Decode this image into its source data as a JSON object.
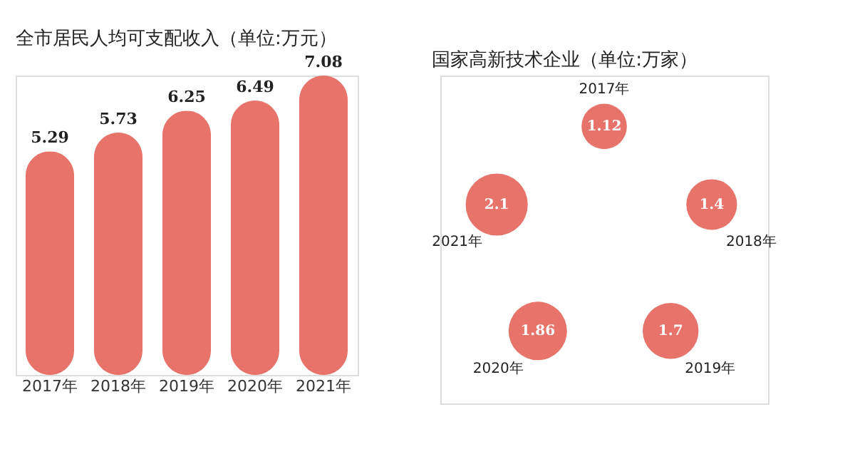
{
  "chart_data": [
    {
      "type": "bar",
      "title": "全市居民人均可支配收入（单位:万元）",
      "categories": [
        "2017年",
        "2018年",
        "2019年",
        "2020年",
        "2021年"
      ],
      "values": [
        5.29,
        5.73,
        6.25,
        6.49,
        7.08
      ],
      "color": "#e7736a",
      "data_labels": true
    },
    {
      "type": "other",
      "title": "国家高新技术企业（单位:万家）",
      "categories": [
        "2017年",
        "2018年",
        "2019年",
        "2020年",
        "2021年"
      ],
      "values": [
        1.12,
        1.4,
        1.7,
        1.86,
        2.1
      ],
      "color": "#e7736a",
      "data_labels": true
    }
  ]
}
